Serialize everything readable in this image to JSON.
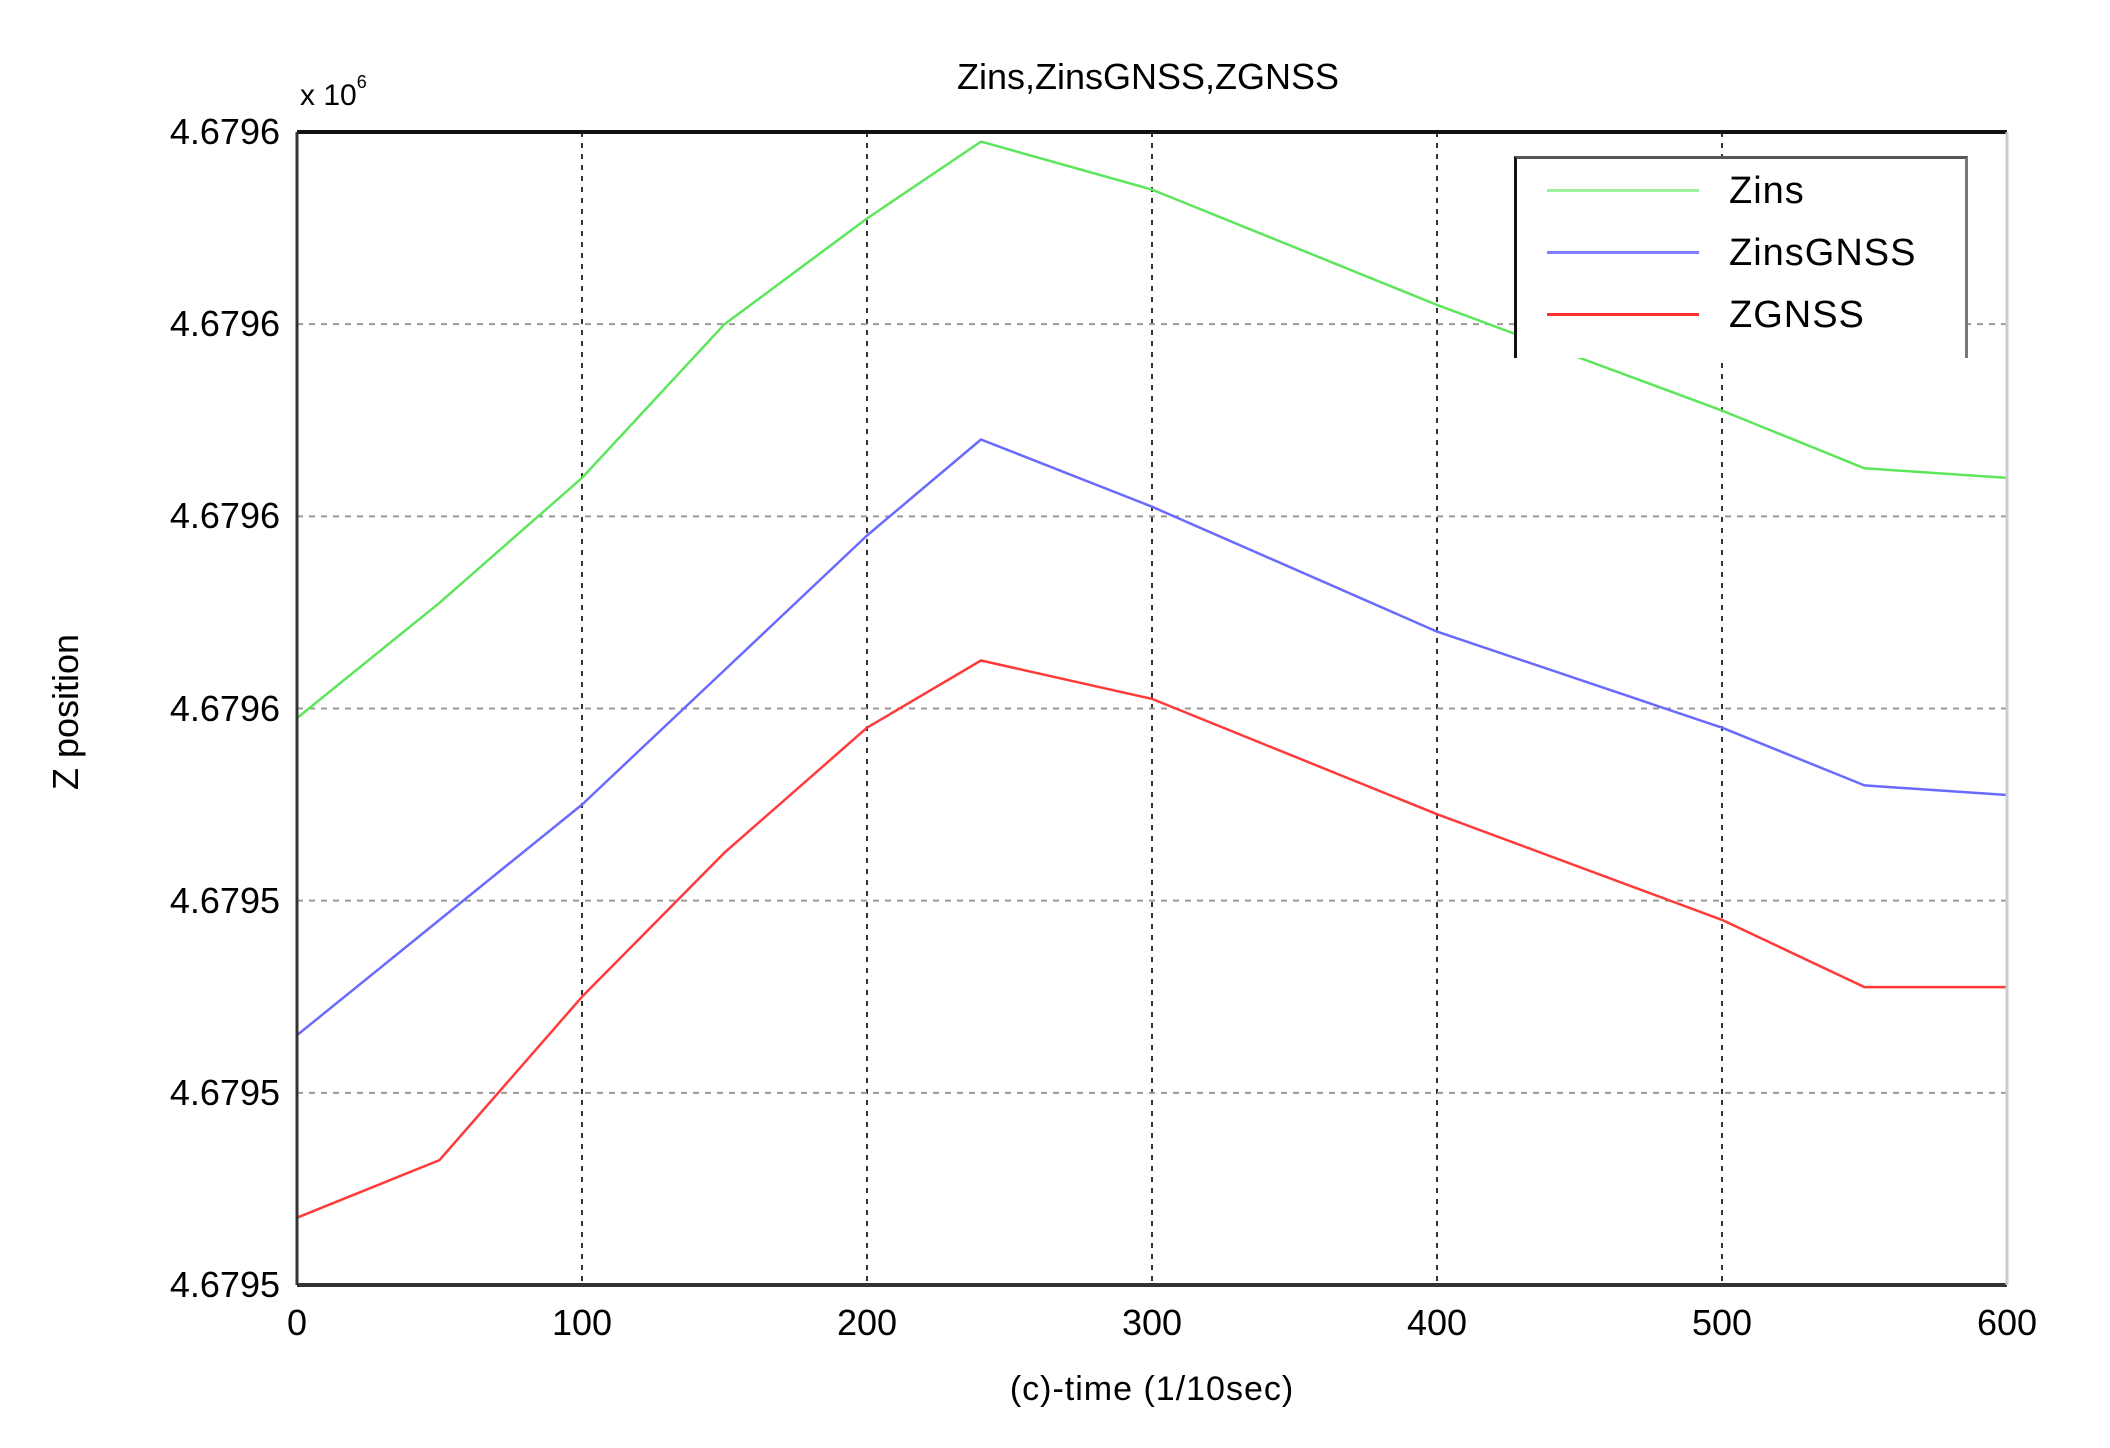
{
  "chart_data": {
    "type": "line",
    "title": "Zins,ZinsGNSS,ZGNSS",
    "xlabel": "(c)-time (1/10sec)",
    "ylabel": "Z position",
    "y_exponent": "x 10",
    "y_exponent_power": "6",
    "xlim": [
      0,
      600
    ],
    "ylim": [
      4.67948,
      4.6796
    ],
    "x_ticks": [
      0,
      100,
      200,
      300,
      400,
      500,
      600
    ],
    "x_tick_labels": [
      "0",
      "100",
      "200",
      "300",
      "400",
      "500",
      "600"
    ],
    "y_ticks": [
      4.6796,
      4.67958,
      4.67956,
      4.67954,
      4.67952,
      4.6795,
      4.67948
    ],
    "y_tick_labels": [
      "4.6796",
      "4.6796",
      "4.6796",
      "4.6796",
      "4.6795",
      "4.6795",
      "4.6795"
    ],
    "grid": true,
    "legend_position": "upper right",
    "x": [
      0,
      50,
      100,
      150,
      200,
      240,
      300,
      400,
      500,
      550,
      600
    ],
    "series": [
      {
        "name": "Zins",
        "color": "#5ce65c",
        "values": [
          4.679539,
          4.679551,
          4.679564,
          4.67958,
          4.679591,
          4.679599,
          4.679594,
          4.679582,
          4.679571,
          4.679565,
          4.679564
        ]
      },
      {
        "name": "ZinsGNSS",
        "color": "#6a6aff",
        "values": [
          4.679506,
          4.679518,
          4.67953,
          4.679544,
          4.679558,
          4.679568,
          4.679561,
          4.679548,
          4.679538,
          4.679532,
          4.679531
        ]
      },
      {
        "name": "ZGNSS",
        "color": "#ff3a3a",
        "values": [
          4.679487,
          4.679493,
          4.67951,
          4.679525,
          4.679538,
          4.679545,
          4.679541,
          4.679529,
          4.679518,
          4.679511,
          4.679511
        ]
      }
    ]
  },
  "legend": {
    "items": [
      {
        "label": "Zins",
        "color": "#9ef29e"
      },
      {
        "label": "ZinsGNSS",
        "color": "#8080ff"
      },
      {
        "label": "ZGNSS",
        "color": "#ff3030"
      }
    ]
  }
}
